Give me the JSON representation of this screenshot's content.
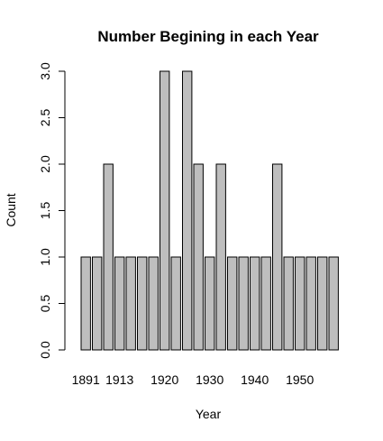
{
  "chart_data": {
    "type": "bar",
    "title": "Number Begining in each Year",
    "xlabel": "Year",
    "ylabel": "Count",
    "categories": [
      "1891",
      "",
      "",
      "1913",
      "",
      "",
      "",
      "1920",
      "",
      "",
      "",
      "1930",
      "",
      "",
      "",
      "1940",
      "",
      "",
      "",
      "1950",
      "",
      "",
      ""
    ],
    "values": [
      1,
      1,
      2,
      1,
      1,
      1,
      1,
      3,
      1,
      3,
      2,
      1,
      2,
      1,
      1,
      1,
      1,
      2,
      1,
      1,
      1,
      1,
      1
    ],
    "yticks": [
      "0.0",
      "0.5",
      "1.0",
      "1.5",
      "2.0",
      "2.5",
      "3.0"
    ],
    "ylim": [
      0,
      3
    ],
    "grid": false,
    "bar_color": "#bebebe",
    "border_color": "#000000"
  }
}
